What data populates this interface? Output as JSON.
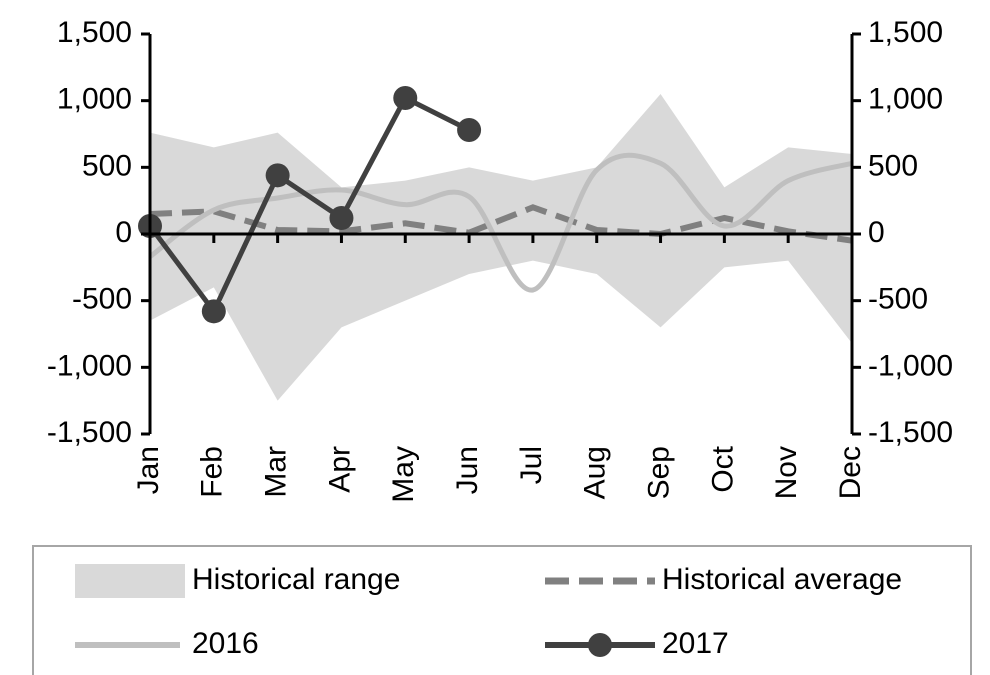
{
  "chart_data": {
    "type": "line",
    "categories": [
      "Jan",
      "Feb",
      "Mar",
      "Apr",
      "May",
      "Jun",
      "Jul",
      "Aug",
      "Sep",
      "Oct",
      "Nov",
      "Dec"
    ],
    "ylim": [
      -1500,
      1500
    ],
    "yticks": [
      {
        "value": -1500,
        "label": "-1,500"
      },
      {
        "value": -1000,
        "label": "-1,000"
      },
      -500,
      0,
      500,
      {
        "value": 1000,
        "label": "1,000"
      },
      {
        "value": 1500,
        "label": "1,500"
      }
    ],
    "y2lim": [
      -1500,
      1500
    ],
    "y2ticks": [
      {
        "value": -1500,
        "label": "-1,500"
      },
      {
        "value": -1000,
        "label": "-1,000"
      },
      -500,
      0,
      500,
      {
        "value": 1000,
        "label": "1,000"
      },
      {
        "value": 1500,
        "label": "1,500"
      }
    ],
    "series": [
      {
        "name": "Historical range",
        "color": "#d9d9d9",
        "kind": "range",
        "high": [
          760,
          650,
          760,
          350,
          400,
          500,
          400,
          500,
          1050,
          350,
          650,
          600
        ],
        "low": [
          -650,
          -400,
          -1250,
          -700,
          -500,
          -300,
          -200,
          -300,
          -700,
          -250,
          -200,
          -820
        ]
      },
      {
        "name": "Historical average",
        "color": "#808080",
        "kind": "dashed",
        "values": [
          150,
          170,
          30,
          20,
          80,
          10,
          200,
          30,
          0,
          120,
          20,
          -50
        ]
      },
      {
        "name": "2016",
        "color": "#bfbfbf",
        "kind": "smooth",
        "values": [
          -170,
          180,
          270,
          330,
          220,
          280,
          -420,
          480,
          530,
          60,
          400,
          530
        ]
      },
      {
        "name": "2017",
        "color": "#404040",
        "kind": "marker",
        "values": [
          60,
          -580,
          440,
          120,
          1020,
          780,
          null,
          null,
          null,
          null,
          null,
          null
        ]
      }
    ]
  }
}
